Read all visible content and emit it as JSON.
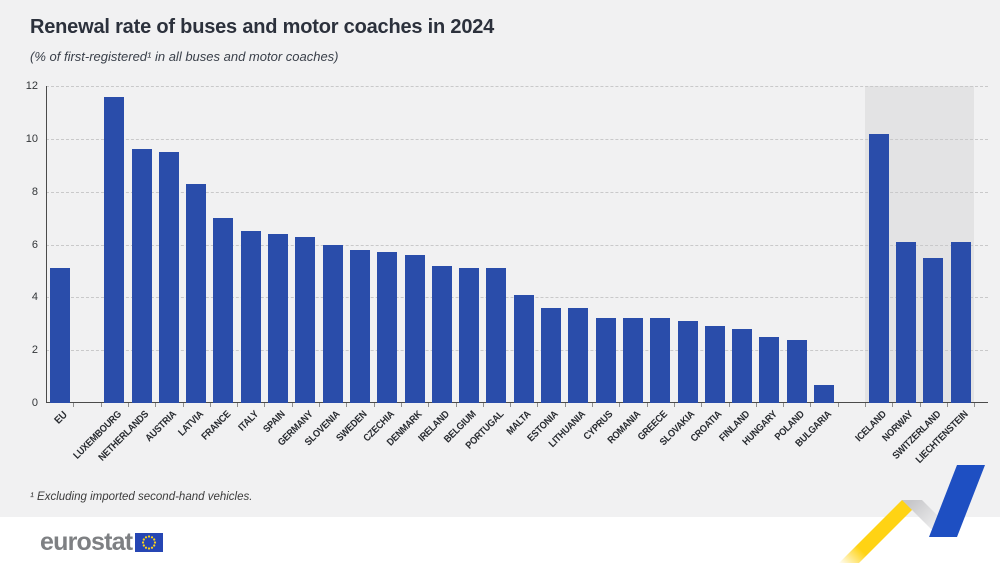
{
  "footer": {
    "logo_text": "eurostat"
  },
  "footnote": "¹ Excluding imported second-hand vehicles.",
  "colors": {
    "background": "#f1f1f2",
    "bar": "#2a4daa",
    "efta_shade": "#e3e3e4",
    "ribbon_yellow": "#ffd314",
    "ribbon_grey_dark": "#c7c7ca",
    "ribbon_grey_light": "#f4f4f4",
    "ribbon_blue": "#1e4fc2",
    "flag_blue": "#2646b4",
    "star_yellow": "#ffd617"
  },
  "chart_data": {
    "type": "bar",
    "title": "Renewal rate of buses and motor coaches in 2024",
    "subtitle": "(% of first-registered¹ in all buses and motor coaches)",
    "xlabel": "",
    "ylabel": "",
    "ylim": [
      0,
      12
    ],
    "yticks": [
      0,
      2,
      4,
      6,
      8,
      10,
      12
    ],
    "grid": "horizontal-dashed",
    "legend": "none",
    "layout_note": "EFTA countries drawn on grey shaded band; gap after EU aggregate and after Bulgaria",
    "points": [
      {
        "label": "EU",
        "value": 5.1,
        "group": "eu-aggregate"
      },
      {
        "label": "LUXEMBOURG",
        "value": 11.6,
        "group": "eu-member"
      },
      {
        "label": "NETHERLANDS",
        "value": 9.6,
        "group": "eu-member"
      },
      {
        "label": "AUSTRIA",
        "value": 9.5,
        "group": "eu-member"
      },
      {
        "label": "LATVIA",
        "value": 8.3,
        "group": "eu-member"
      },
      {
        "label": "FRANCE",
        "value": 7.0,
        "group": "eu-member"
      },
      {
        "label": "ITALY",
        "value": 6.5,
        "group": "eu-member"
      },
      {
        "label": "SPAIN",
        "value": 6.4,
        "group": "eu-member"
      },
      {
        "label": "GERMANY",
        "value": 6.3,
        "group": "eu-member"
      },
      {
        "label": "SLOVENIA",
        "value": 6.0,
        "group": "eu-member"
      },
      {
        "label": "SWEDEN",
        "value": 5.8,
        "group": "eu-member"
      },
      {
        "label": "CZECHIA",
        "value": 5.7,
        "group": "eu-member"
      },
      {
        "label": "DENMARK",
        "value": 5.6,
        "group": "eu-member"
      },
      {
        "label": "IRELAND",
        "value": 5.2,
        "group": "eu-member"
      },
      {
        "label": "BELGIUM",
        "value": 5.1,
        "group": "eu-member"
      },
      {
        "label": "PORTUGAL",
        "value": 5.1,
        "group": "eu-member"
      },
      {
        "label": "MALTA",
        "value": 4.1,
        "group": "eu-member"
      },
      {
        "label": "ESTONIA",
        "value": 3.6,
        "group": "eu-member"
      },
      {
        "label": "LITHUANIA",
        "value": 3.6,
        "group": "eu-member"
      },
      {
        "label": "CYPRUS",
        "value": 3.2,
        "group": "eu-member"
      },
      {
        "label": "ROMANIA",
        "value": 3.2,
        "group": "eu-member"
      },
      {
        "label": "GREECE",
        "value": 3.2,
        "group": "eu-member"
      },
      {
        "label": "SLOVAKIA",
        "value": 3.1,
        "group": "eu-member"
      },
      {
        "label": "CROATIA",
        "value": 2.9,
        "group": "eu-member"
      },
      {
        "label": "FINLAND",
        "value": 2.8,
        "group": "eu-member"
      },
      {
        "label": "HUNGARY",
        "value": 2.5,
        "group": "eu-member"
      },
      {
        "label": "POLAND",
        "value": 2.4,
        "group": "eu-member"
      },
      {
        "label": "BULGARIA",
        "value": 0.7,
        "group": "eu-member"
      },
      {
        "label": "ICELAND",
        "value": 10.2,
        "group": "efta"
      },
      {
        "label": "NORWAY",
        "value": 6.1,
        "group": "efta"
      },
      {
        "label": "SWITZERLAND",
        "value": 5.5,
        "group": "efta"
      },
      {
        "label": "LIECHTENSTEIN",
        "value": 6.1,
        "group": "efta"
      }
    ]
  }
}
